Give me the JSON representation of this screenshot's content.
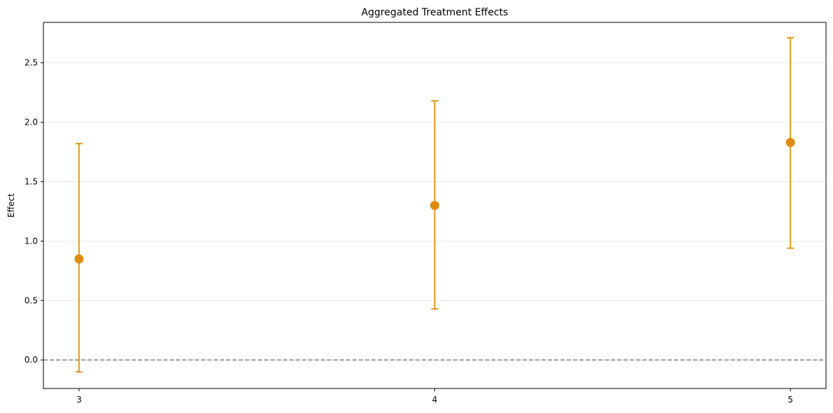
{
  "chart_data": {
    "type": "scatter",
    "title": "Aggregated Treatment Effects",
    "xlabel": "",
    "ylabel": "Effect",
    "xlim": [
      2.9,
      5.1
    ],
    "ylim": [
      -0.24,
      2.84
    ],
    "x_ticks": [
      3,
      4,
      5
    ],
    "x_tick_labels": [
      "3",
      "4",
      "5"
    ],
    "y_ticks": [
      0.0,
      0.5,
      1.0,
      1.5,
      2.0,
      2.5
    ],
    "y_tick_labels": [
      "0.0",
      "0.5",
      "1.0",
      "1.5",
      "2.0",
      "2.5"
    ],
    "grid": "horizontal",
    "reference_line": {
      "y": 0.0,
      "style": "dashed",
      "color": "#808080"
    },
    "series": [
      {
        "color": "#df8c0c",
        "points": [
          {
            "x": 3,
            "y": 0.85,
            "lower": -0.1,
            "upper": 1.82
          },
          {
            "x": 4,
            "y": 1.3,
            "lower": 0.43,
            "upper": 2.18
          },
          {
            "x": 5,
            "y": 1.83,
            "lower": 0.94,
            "upper": 2.71
          }
        ]
      }
    ]
  }
}
